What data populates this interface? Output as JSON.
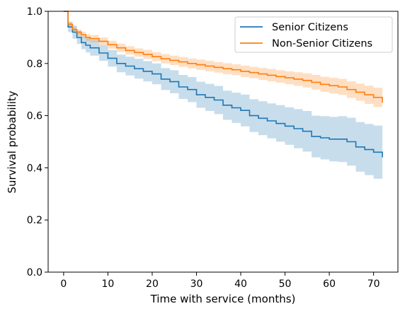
{
  "chart_data": {
    "type": "line",
    "title": "",
    "xlabel": "Time with service (months)",
    "ylabel": "Survival probability",
    "xlim": [
      -3.5,
      75.5
    ],
    "ylim": [
      0.0,
      1.0
    ],
    "xticks": [
      0,
      10,
      20,
      30,
      40,
      50,
      60,
      70
    ],
    "yticks": [
      0.0,
      0.2,
      0.4,
      0.6,
      0.8,
      1.0
    ],
    "xtick_labels": [
      "0",
      "10",
      "20",
      "30",
      "40",
      "50",
      "60",
      "70"
    ],
    "ytick_labels": [
      "0.0",
      "0.2",
      "0.4",
      "0.6",
      "0.8",
      "1.0"
    ],
    "grid": false,
    "legend_position": "top-right",
    "series": [
      {
        "name": "Senior Citizens",
        "color": "#1f77b4",
        "band_color": "#1f77b4",
        "x": [
          0,
          1,
          2,
          3,
          4,
          5,
          6,
          8,
          10,
          12,
          14,
          16,
          18,
          20,
          22,
          24,
          26,
          28,
          30,
          32,
          34,
          36,
          38,
          40,
          42,
          44,
          46,
          48,
          50,
          52,
          54,
          56,
          58,
          60,
          62,
          64,
          66,
          68,
          70,
          72
        ],
        "y": [
          1.0,
          0.94,
          0.92,
          0.9,
          0.88,
          0.87,
          0.86,
          0.84,
          0.82,
          0.8,
          0.79,
          0.78,
          0.77,
          0.76,
          0.74,
          0.73,
          0.71,
          0.7,
          0.68,
          0.67,
          0.66,
          0.64,
          0.63,
          0.62,
          0.6,
          0.59,
          0.58,
          0.57,
          0.56,
          0.55,
          0.54,
          0.52,
          0.515,
          0.51,
          0.51,
          0.5,
          0.48,
          0.47,
          0.46,
          0.44
        ],
        "lower": [
          1.0,
          0.92,
          0.895,
          0.875,
          0.855,
          0.842,
          0.83,
          0.81,
          0.788,
          0.766,
          0.754,
          0.742,
          0.731,
          0.72,
          0.698,
          0.686,
          0.664,
          0.652,
          0.63,
          0.618,
          0.606,
          0.584,
          0.572,
          0.559,
          0.537,
          0.525,
          0.513,
          0.5,
          0.488,
          0.475,
          0.462,
          0.44,
          0.432,
          0.425,
          0.422,
          0.408,
          0.385,
          0.372,
          0.358,
          0.33
        ],
        "upper": [
          1.0,
          0.96,
          0.945,
          0.925,
          0.905,
          0.898,
          0.89,
          0.87,
          0.852,
          0.834,
          0.826,
          0.818,
          0.809,
          0.8,
          0.782,
          0.774,
          0.756,
          0.748,
          0.73,
          0.722,
          0.714,
          0.696,
          0.688,
          0.681,
          0.663,
          0.655,
          0.647,
          0.64,
          0.632,
          0.625,
          0.618,
          0.6,
          0.598,
          0.595,
          0.598,
          0.592,
          0.575,
          0.568,
          0.562,
          0.55
        ]
      },
      {
        "name": "Non-Senior Citizens",
        "color": "#ff7f0e",
        "band_color": "#ff7f0e",
        "x": [
          0,
          1,
          2,
          3,
          4,
          5,
          6,
          8,
          10,
          12,
          14,
          16,
          18,
          20,
          22,
          24,
          26,
          28,
          30,
          32,
          34,
          36,
          38,
          40,
          42,
          44,
          46,
          48,
          50,
          52,
          54,
          56,
          58,
          60,
          62,
          64,
          66,
          68,
          70,
          72
        ],
        "y": [
          1.0,
          0.95,
          0.93,
          0.92,
          0.91,
          0.9,
          0.895,
          0.885,
          0.872,
          0.86,
          0.85,
          0.842,
          0.835,
          0.826,
          0.818,
          0.812,
          0.806,
          0.8,
          0.795,
          0.79,
          0.785,
          0.78,
          0.776,
          0.77,
          0.765,
          0.76,
          0.755,
          0.75,
          0.745,
          0.74,
          0.735,
          0.728,
          0.72,
          0.715,
          0.71,
          0.7,
          0.69,
          0.68,
          0.67,
          0.65
        ],
        "lower": [
          1.0,
          0.942,
          0.92,
          0.909,
          0.898,
          0.887,
          0.881,
          0.87,
          0.857,
          0.844,
          0.834,
          0.826,
          0.818,
          0.809,
          0.8,
          0.794,
          0.787,
          0.781,
          0.775,
          0.77,
          0.765,
          0.759,
          0.755,
          0.748,
          0.743,
          0.737,
          0.731,
          0.726,
          0.72,
          0.714,
          0.708,
          0.7,
          0.691,
          0.685,
          0.679,
          0.668,
          0.657,
          0.645,
          0.633,
          0.61
        ],
        "upper": [
          1.0,
          0.958,
          0.94,
          0.931,
          0.922,
          0.913,
          0.909,
          0.9,
          0.887,
          0.876,
          0.866,
          0.858,
          0.852,
          0.843,
          0.836,
          0.83,
          0.825,
          0.819,
          0.815,
          0.81,
          0.805,
          0.801,
          0.797,
          0.792,
          0.787,
          0.783,
          0.779,
          0.774,
          0.77,
          0.766,
          0.762,
          0.756,
          0.749,
          0.745,
          0.741,
          0.732,
          0.723,
          0.715,
          0.707,
          0.69
        ]
      }
    ]
  }
}
